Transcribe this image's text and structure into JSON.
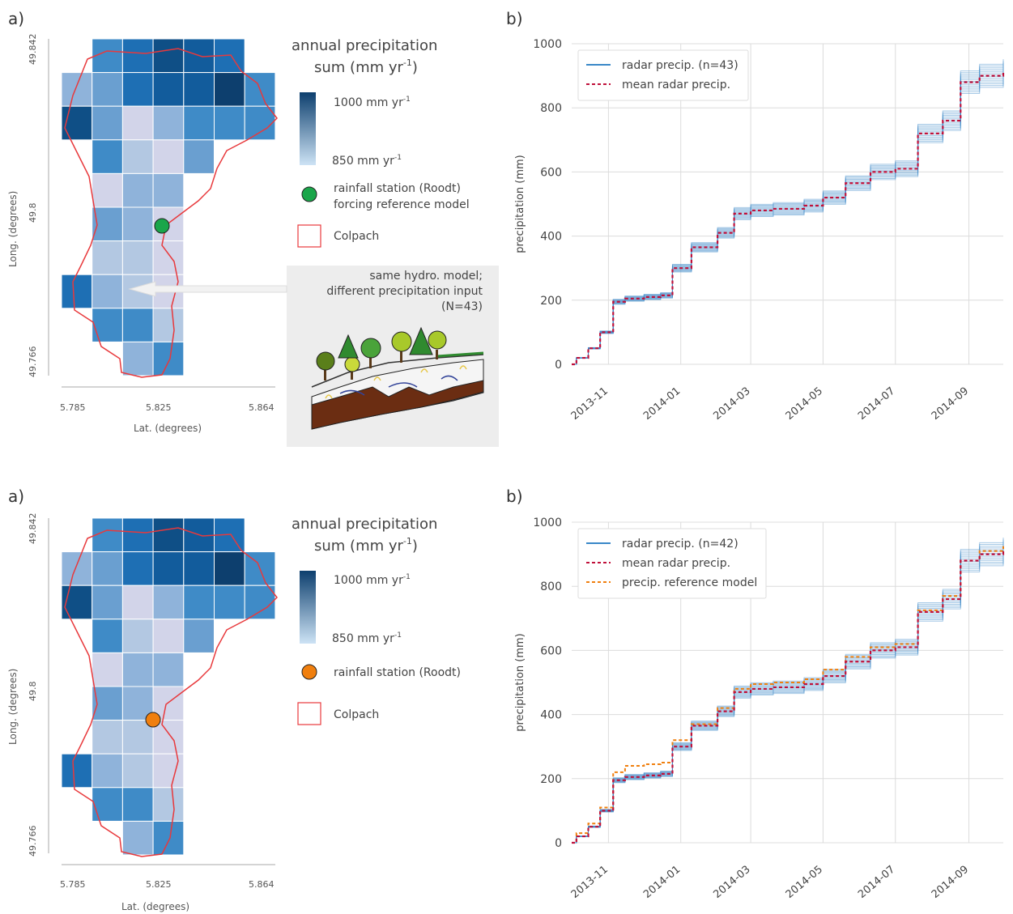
{
  "panel_labels": {
    "a": "a)",
    "b": "b)"
  },
  "colors": {
    "outline": "#e8393c",
    "grid": "#dcdcdc",
    "series_radar": "#3a88c8",
    "series_mean": "#c0103a",
    "series_reference": "#f07f0e",
    "station_top": "#1aa64a",
    "station_bottom": "#f07f0e",
    "box_bg": "#ededed",
    "colorscale_high": "#0d3f6e",
    "colorscale_low": "#cde3f5"
  },
  "map": {
    "xlabel": "Lat. (degrees)",
    "ylabel": "Long. (degrees)",
    "xticks": [
      "5.785",
      "5.825",
      "5.864"
    ],
    "yticks": [
      "49.842",
      "49.8",
      "49.766"
    ]
  },
  "legend_common": {
    "title_line1": "annual precipitation",
    "title_line2": "sum (mm yr",
    "title_sup": "-1",
    "title_end": ")",
    "cb_max": "1000 mm yr",
    "cb_min": "850 mm yr",
    "cb_sup": "-1",
    "outline_label": "Colpach"
  },
  "top": {
    "station_line1": "rainfall station (Roodt)",
    "station_line2": "forcing reference model",
    "box_line1": "same hydro. model;",
    "box_line2": "different precipitation input",
    "box_line3": "(N=43)"
  },
  "bottom": {
    "station_line1": "rainfall station (Roodt)"
  },
  "chart_data": [
    {
      "type": "line",
      "panel": "b) top",
      "ylabel": "precipitation (mm)",
      "ylim": [
        0,
        1000
      ],
      "yticks": [
        0,
        200,
        400,
        600,
        800,
        1000
      ],
      "x_tick_labels": [
        "2013-11",
        "2014-01",
        "2014-03",
        "2014-05",
        "2014-07",
        "2014-09"
      ],
      "xlim": [
        "2013-10-01",
        "2014-09-30"
      ],
      "grid": true,
      "legend_placement": "top-left",
      "x": [
        "2013-10-01",
        "2013-10-05",
        "2013-10-15",
        "2013-10-25",
        "2013-11-05",
        "2013-11-15",
        "2013-12-01",
        "2013-12-15",
        "2013-12-25",
        "2014-01-10",
        "2014-02-01",
        "2014-02-15",
        "2014-03-01",
        "2014-03-20",
        "2014-04-15",
        "2014-05-01",
        "2014-05-20",
        "2014-06-10",
        "2014-07-01",
        "2014-07-20",
        "2014-08-10",
        "2014-08-25",
        "2014-09-10",
        "2014-09-30"
      ],
      "series": [
        {
          "name": "radar precip. (n=43)",
          "style": "solid-band",
          "values": [
            0,
            20,
            50,
            100,
            195,
            205,
            210,
            215,
            300,
            365,
            410,
            470,
            480,
            485,
            495,
            520,
            565,
            600,
            610,
            720,
            760,
            880,
            900,
            915
          ],
          "spread": 0.04
        },
        {
          "name": "mean radar precip.",
          "style": "dashed",
          "values": [
            0,
            20,
            50,
            100,
            195,
            205,
            210,
            215,
            300,
            365,
            410,
            470,
            480,
            485,
            495,
            520,
            565,
            600,
            610,
            720,
            760,
            880,
            900,
            915
          ]
        }
      ]
    },
    {
      "type": "line",
      "panel": "b) bottom",
      "ylabel": "precipitation (mm)",
      "ylim": [
        0,
        1000
      ],
      "yticks": [
        0,
        200,
        400,
        600,
        800,
        1000
      ],
      "x_tick_labels": [
        "2013-11",
        "2014-01",
        "2014-03",
        "2014-05",
        "2014-07",
        "2014-09"
      ],
      "xlim": [
        "2013-10-01",
        "2014-09-30"
      ],
      "grid": true,
      "legend_placement": "top-left",
      "x": [
        "2013-10-01",
        "2013-10-05",
        "2013-10-15",
        "2013-10-25",
        "2013-11-05",
        "2013-11-15",
        "2013-12-01",
        "2013-12-15",
        "2013-12-25",
        "2014-01-10",
        "2014-02-01",
        "2014-02-15",
        "2014-03-01",
        "2014-03-20",
        "2014-04-15",
        "2014-05-01",
        "2014-05-20",
        "2014-06-10",
        "2014-07-01",
        "2014-07-20",
        "2014-08-10",
        "2014-08-25",
        "2014-09-10",
        "2014-09-30"
      ],
      "series": [
        {
          "name": "radar precip. (n=42)",
          "style": "solid-band",
          "values": [
            0,
            20,
            50,
            100,
            195,
            205,
            210,
            215,
            300,
            365,
            410,
            470,
            480,
            485,
            495,
            520,
            565,
            600,
            610,
            720,
            760,
            880,
            900,
            915
          ],
          "spread": 0.04
        },
        {
          "name": "mean radar precip.",
          "style": "dashed",
          "values": [
            0,
            20,
            50,
            100,
            195,
            205,
            210,
            215,
            300,
            365,
            410,
            470,
            480,
            485,
            495,
            520,
            565,
            600,
            610,
            720,
            760,
            880,
            900,
            915
          ]
        },
        {
          "name": "precip. reference model",
          "style": "dashed-orange",
          "values": [
            0,
            30,
            60,
            110,
            220,
            240,
            245,
            250,
            320,
            370,
            420,
            480,
            495,
            500,
            510,
            540,
            580,
            610,
            620,
            725,
            770,
            880,
            910,
            925
          ]
        }
      ]
    }
  ]
}
